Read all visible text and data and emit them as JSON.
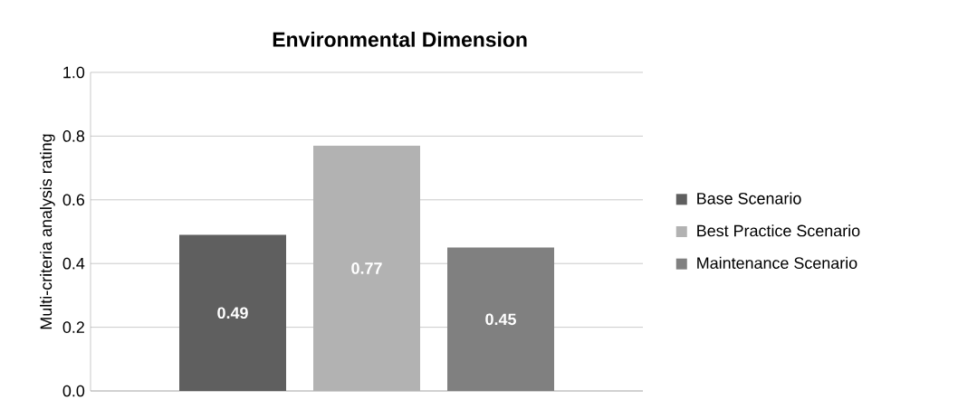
{
  "chart_data": {
    "type": "bar",
    "title": "Environmental Dimension",
    "ylabel": "Multi-criteria analysis rating",
    "categories": [
      null
    ],
    "series": [
      {
        "name": "Base Scenario",
        "color": "#5f5f5f",
        "values": [
          0.49
        ]
      },
      {
        "name": "Best Practice Scenario",
        "color": "#b2b2b2",
        "values": [
          0.77
        ]
      },
      {
        "name": "Maintenance Scenario",
        "color": "#808080",
        "values": [
          0.45
        ]
      }
    ],
    "ylim": [
      0,
      1.0
    ],
    "yticks": [
      {
        "value": 0,
        "label": "0.0"
      },
      {
        "value": 0.2,
        "label": "0.2"
      },
      {
        "value": 0.4,
        "label": "0.4"
      },
      {
        "value": 0.6,
        "label": "0.6"
      },
      {
        "value": 0.8,
        "label": "0.8"
      },
      {
        "value": 1.0,
        "label": "1.0"
      }
    ],
    "grid": "y",
    "legend": "right",
    "data_labels": true
  }
}
